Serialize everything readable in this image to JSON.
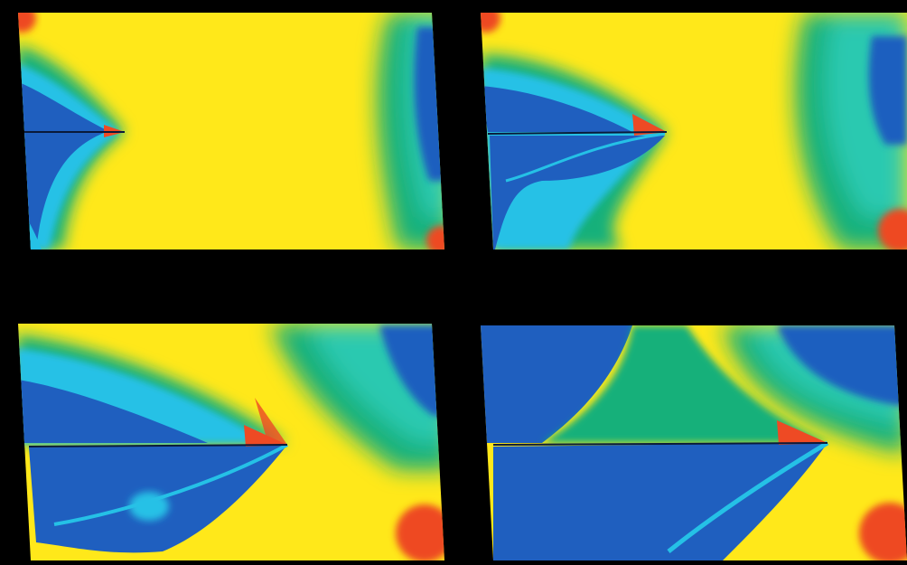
{
  "image": {
    "description_tags": [
      "crack-propagation-simulation",
      "stress-field-colormap",
      "four-panel-sequence"
    ],
    "colors": {
      "background": "#000000",
      "low": "#1f5fbf",
      "low_mid": "#25c1e6",
      "mid": "#18b07a",
      "high": "#ffe81a",
      "peak": "#ee4a24"
    },
    "panels": [
      {
        "id": "panel-1",
        "stage": 1
      },
      {
        "id": "panel-2",
        "stage": 2
      },
      {
        "id": "panel-3",
        "stage": 3
      },
      {
        "id": "panel-4",
        "stage": 4
      }
    ]
  }
}
